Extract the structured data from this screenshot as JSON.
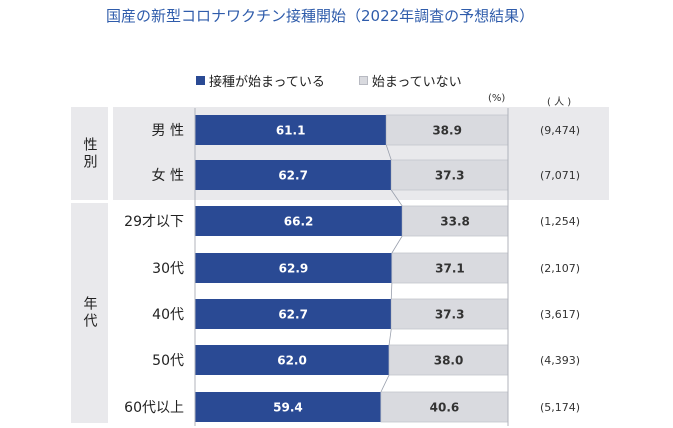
{
  "title": "国産の新型コロナワクチン接種開始（2022年調査の予想結果）",
  "legend": {
    "started": "接種が始まっている",
    "not_started": "始まっていない"
  },
  "units": {
    "percent": "(%)",
    "people": "( 人 )"
  },
  "groups": [
    {
      "label": "性別",
      "rows": [
        0,
        1
      ]
    },
    {
      "label": "年代",
      "rows": [
        2,
        3,
        4,
        5,
        6
      ]
    }
  ],
  "colors": {
    "started": "#2a4a94",
    "not_started": "#d9dadf",
    "title": "#2f5cab",
    "panel": "#e9e9ec"
  },
  "chart_data": {
    "type": "bar",
    "orientation": "horizontal",
    "stacked": true,
    "title": "国産の新型コロナワクチン接種開始（2022年調査の予想結果）",
    "categories": [
      "男 性",
      "女 性",
      "29才以下",
      "30代",
      "40代",
      "50代",
      "60代以上"
    ],
    "series": [
      {
        "name": "接種が始まっている",
        "values": [
          61.1,
          62.7,
          66.2,
          62.9,
          62.7,
          62.0,
          59.4
        ]
      },
      {
        "name": "始まっていない",
        "values": [
          38.9,
          37.3,
          33.8,
          37.1,
          37.3,
          38.0,
          40.6
        ]
      }
    ],
    "value_labels": [
      [
        "61.1",
        "62.7",
        "66.2",
        "62.9",
        "62.7",
        "62.0",
        "59.4"
      ],
      [
        "38.9",
        "37.3",
        "33.8",
        "37.1",
        "37.3",
        "38.0",
        "40.6"
      ]
    ],
    "sample_sizes": [
      "(9,474)",
      "(7,071)",
      "(1,254)",
      "(2,107)",
      "(3,617)",
      "(4,393)",
      "(5,174)"
    ],
    "xlim": [
      0,
      100
    ],
    "legend_position": "top",
    "grid": false
  }
}
